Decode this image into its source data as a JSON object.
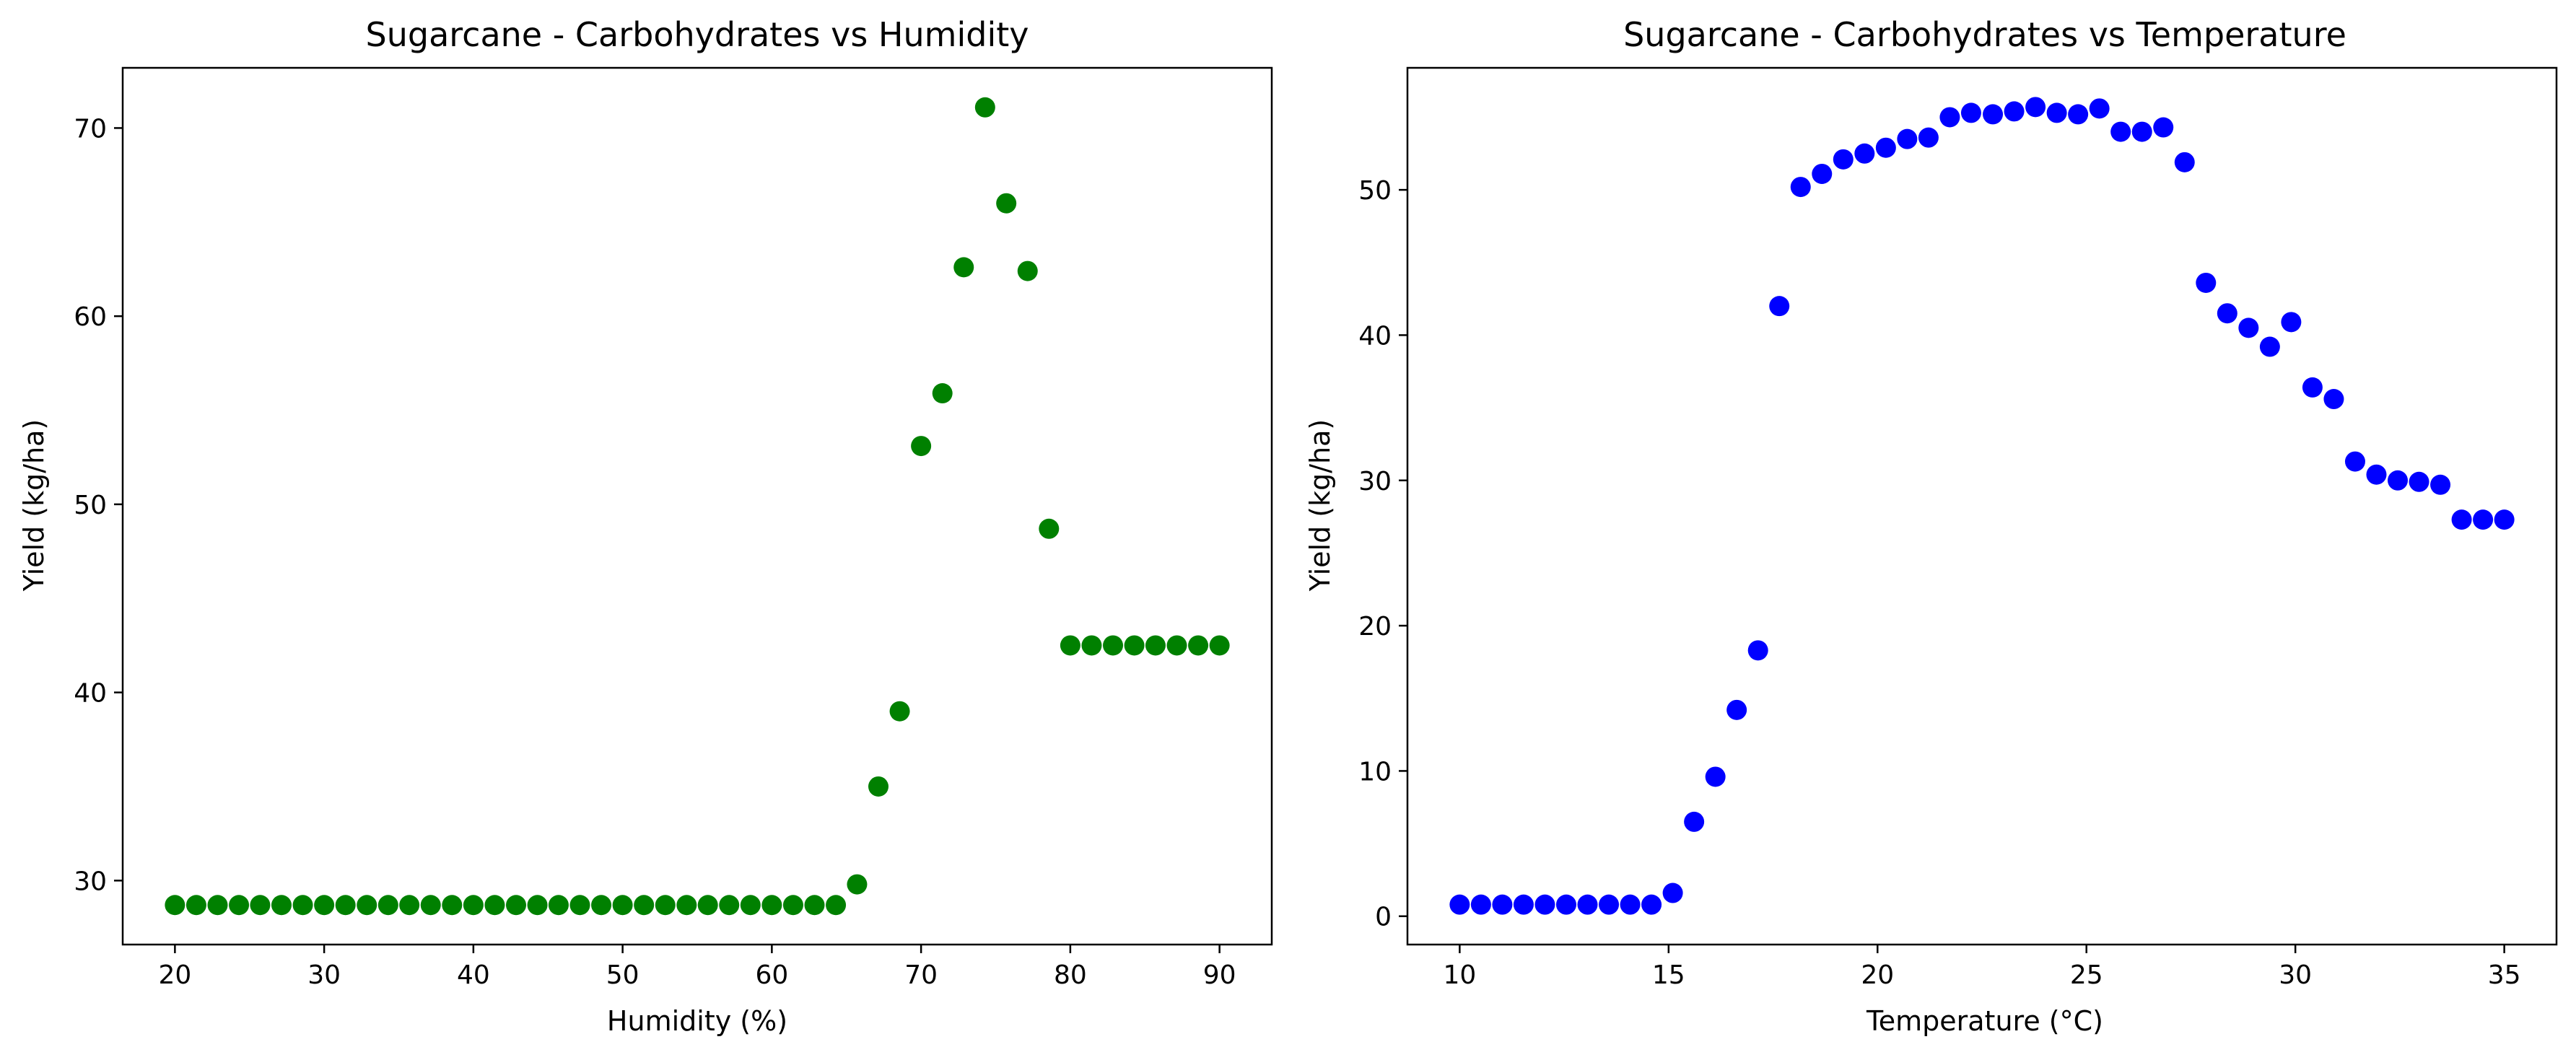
{
  "chart_data": [
    {
      "type": "scatter",
      "title": "Sugarcane - Carbohydrates vs Humidity",
      "xlabel": "Humidity (%)",
      "ylabel": "Yield (kg/ha)",
      "xlim": [
        16.5,
        93.5
      ],
      "ylim": [
        26.6,
        73.2
      ],
      "xticks": [
        20,
        30,
        40,
        50,
        60,
        70,
        80,
        90
      ],
      "yticks": [
        30,
        40,
        50,
        60,
        70
      ],
      "grid": false,
      "color": "#008000",
      "x": [
        20.0,
        21.43,
        22.86,
        24.29,
        25.71,
        27.14,
        28.57,
        30.0,
        31.43,
        32.86,
        34.29,
        35.71,
        37.14,
        38.57,
        40.0,
        41.43,
        42.86,
        44.29,
        45.71,
        47.14,
        48.57,
        50.0,
        51.43,
        52.86,
        54.29,
        55.71,
        57.14,
        58.57,
        60.0,
        61.43,
        62.86,
        64.29,
        65.71,
        67.14,
        68.57,
        70.0,
        71.43,
        72.86,
        74.29,
        75.71,
        77.14,
        78.57,
        80.0,
        81.43,
        82.86,
        84.29,
        85.71,
        87.14,
        88.57,
        90.0
      ],
      "y": [
        28.7,
        28.7,
        28.7,
        28.7,
        28.7,
        28.7,
        28.7,
        28.7,
        28.7,
        28.7,
        28.7,
        28.7,
        28.7,
        28.7,
        28.7,
        28.7,
        28.7,
        28.7,
        28.7,
        28.7,
        28.7,
        28.7,
        28.7,
        28.7,
        28.7,
        28.7,
        28.7,
        28.7,
        28.7,
        28.7,
        28.7,
        28.7,
        29.8,
        35.0,
        39.0,
        53.1,
        55.9,
        62.6,
        71.1,
        66.0,
        62.4,
        48.7,
        42.5,
        42.5,
        42.5,
        42.5,
        42.5,
        42.5,
        42.5,
        42.5
      ]
    },
    {
      "type": "scatter",
      "title": "Sugarcane - Carbohydrates vs Temperature",
      "xlabel": "Temperature (°C)",
      "ylabel": "Yield (kg/ha)",
      "xlim": [
        8.75,
        36.25
      ],
      "ylim": [
        -1.95,
        58.4
      ],
      "xticks": [
        10,
        15,
        20,
        25,
        30,
        35
      ],
      "yticks": [
        0,
        10,
        20,
        30,
        40,
        50
      ],
      "grid": false,
      "color": "#0000ff",
      "x": [
        10.0,
        10.51,
        11.02,
        11.53,
        12.04,
        12.55,
        13.06,
        13.57,
        14.08,
        14.59,
        15.1,
        15.61,
        16.12,
        16.63,
        17.14,
        17.65,
        18.16,
        18.67,
        19.18,
        19.69,
        20.2,
        20.71,
        21.22,
        21.73,
        22.24,
        22.76,
        23.27,
        23.78,
        24.29,
        24.8,
        25.31,
        25.82,
        26.33,
        26.84,
        27.35,
        27.86,
        28.37,
        28.88,
        29.39,
        29.9,
        30.41,
        30.92,
        31.43,
        31.94,
        32.45,
        32.96,
        33.47,
        33.98,
        34.49,
        35.0
      ],
      "y": [
        0.8,
        0.8,
        0.8,
        0.8,
        0.8,
        0.8,
        0.8,
        0.8,
        0.8,
        0.8,
        1.6,
        6.5,
        9.6,
        14.2,
        18.3,
        42.0,
        50.2,
        51.1,
        52.1,
        52.5,
        52.9,
        53.5,
        53.6,
        55.0,
        55.3,
        55.2,
        55.4,
        55.7,
        55.3,
        55.2,
        55.6,
        54.0,
        54.0,
        54.3,
        51.9,
        43.6,
        41.5,
        40.5,
        39.2,
        40.9,
        36.4,
        35.6,
        31.3,
        30.4,
        30.0,
        29.9,
        29.7,
        27.3,
        27.3,
        27.3
      ]
    }
  ]
}
